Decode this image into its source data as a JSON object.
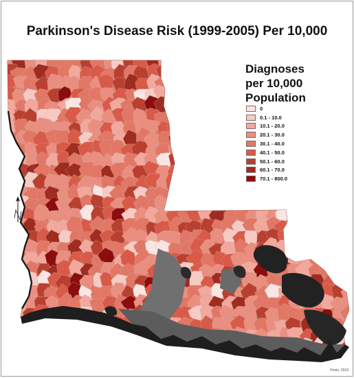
{
  "title": "Parkinson's Disease Risk (1999-2005) Per 10,000",
  "legend": {
    "title_lines": [
      "Diagnoses",
      "per 10,000",
      "Population"
    ],
    "items": [
      {
        "label": "0",
        "color": "#f9e6e3"
      },
      {
        "label": "0.1 - 10.0",
        "color": "#f6cbc4"
      },
      {
        "label": "10.1 - 20.0",
        "color": "#f2a89c"
      },
      {
        "label": "20.1 - 30.0",
        "color": "#ea8f80"
      },
      {
        "label": "30.1 - 40.0",
        "color": "#e27766"
      },
      {
        "label": "40.1 - 50.0",
        "color": "#d95a48"
      },
      {
        "label": "50.1 - 60.0",
        "color": "#b94030"
      },
      {
        "label": "60.1 - 70.0",
        "color": "#9f2c20"
      },
      {
        "label": "70.1 - 800.0",
        "color": "#8b0d0d"
      }
    ]
  },
  "credit": "Peele, 2018",
  "colors": {
    "land_base": "#e27766",
    "water": "#2a2a2a",
    "marsh": "#6b6b6b",
    "coast": "#1e1e1e"
  },
  "icons": [
    "north-arrow-icon"
  ]
}
